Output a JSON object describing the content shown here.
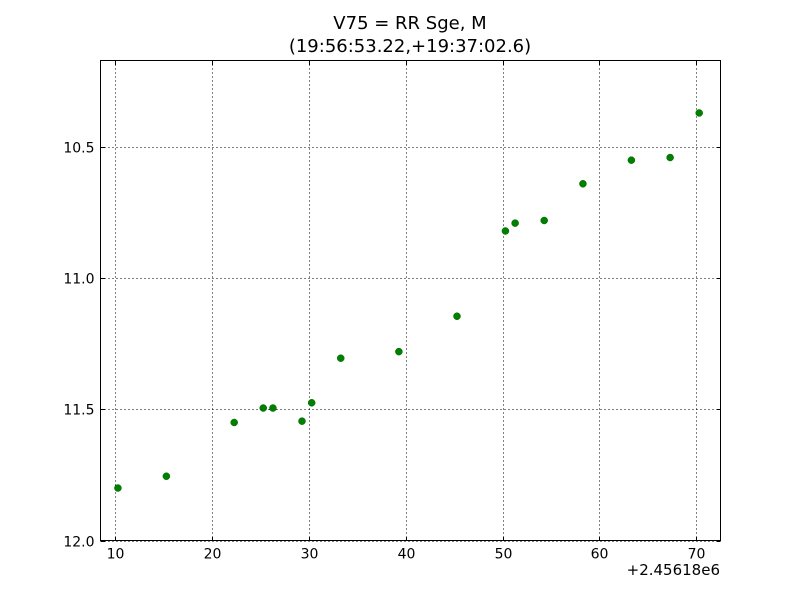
{
  "chart_data": {
    "type": "scatter",
    "title": "V75 = RR Sge, M",
    "subtitle": "(19:56:53.22,+19:37:02.6)",
    "xlabel": "",
    "ylabel": "",
    "x_offset_label": "+2.45618e6",
    "xlim": [
      8.5,
      72.5
    ],
    "ylim": [
      12.0,
      10.17
    ],
    "y_inverted": true,
    "grid": true,
    "x_ticks": [
      10,
      20,
      30,
      40,
      50,
      60,
      70
    ],
    "x_tick_labels": [
      "10",
      "20",
      "30",
      "40",
      "50",
      "60",
      "70"
    ],
    "y_ticks": [
      10.5,
      11.0,
      11.5,
      12.0
    ],
    "y_tick_labels": [
      "10.5",
      "11.0",
      "11.5",
      "12.0"
    ],
    "marker_color": "#008000",
    "series": [
      {
        "x": [
          10.3,
          15.3,
          22.3,
          25.3,
          26.3,
          29.3,
          30.3,
          33.3,
          39.3,
          45.3,
          50.3,
          51.3,
          54.3,
          58.3,
          63.3,
          67.3,
          70.3
        ],
        "y": [
          11.8,
          11.755,
          11.55,
          11.495,
          11.495,
          11.545,
          11.475,
          11.305,
          11.28,
          11.145,
          10.82,
          10.79,
          10.78,
          10.64,
          10.55,
          10.54,
          10.37
        ]
      }
    ]
  }
}
